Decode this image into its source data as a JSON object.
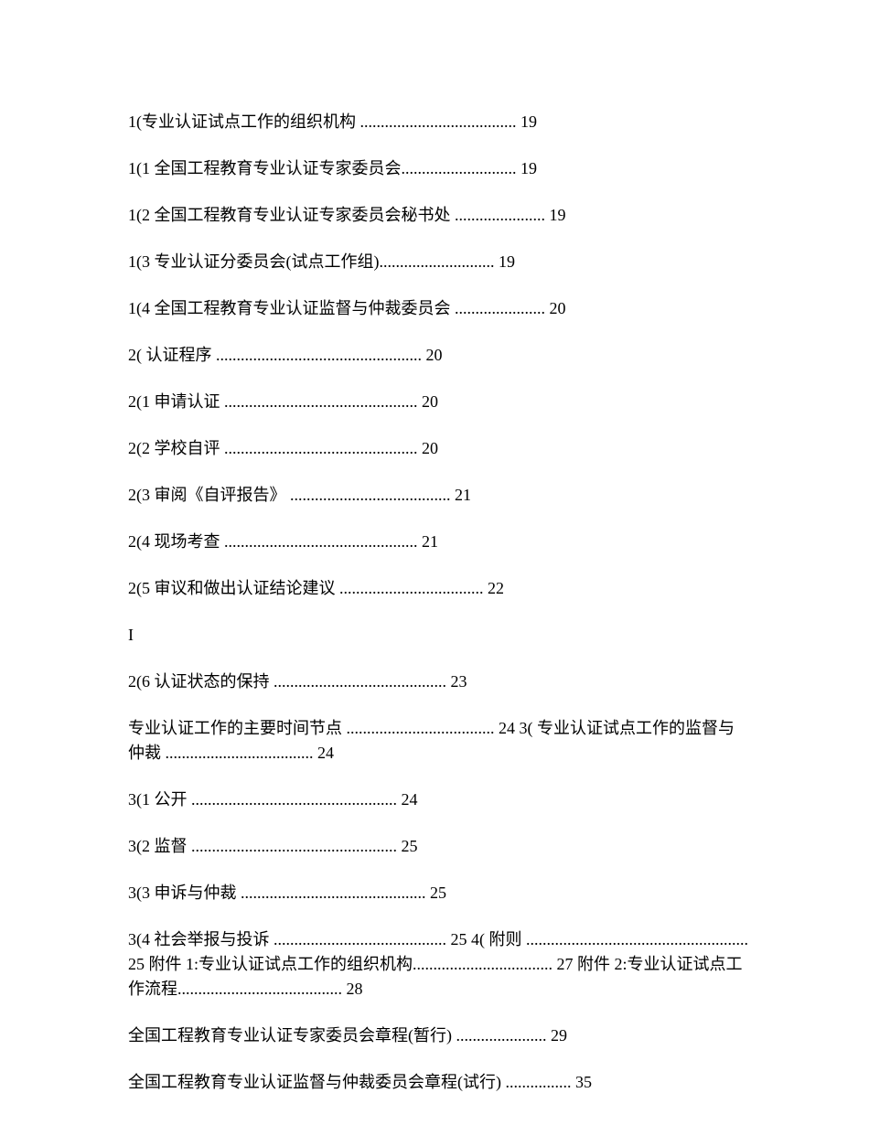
{
  "entries": [
    {
      "text": "1(专业认证试点工作的组织机构 ...................................... 19"
    },
    {
      "text": "1(1 全国工程教育专业认证专家委员会............................ 19"
    },
    {
      "text": "1(2 全国工程教育专业认证专家委员会秘书处 ...................... 19"
    },
    {
      "text": "1(3 专业认证分委员会(试点工作组)............................ 19"
    },
    {
      "text": "1(4 全国工程教育专业认证监督与仲裁委员会 ...................... 20"
    },
    {
      "text": "2( 认证程序 .................................................. 20"
    },
    {
      "text": "2(1 申请认证 ............................................... 20"
    },
    {
      "text": "2(2 学校自评 ............................................... 20"
    },
    {
      "text": "2(3 审阅《自评报告》 ....................................... 21"
    },
    {
      "text": "2(4 现场考查 ............................................... 21"
    },
    {
      "text": "2(5 审议和做出认证结论建议 ................................... 22"
    },
    {
      "text": "I",
      "marker": true
    },
    {
      "text": "2(6 认证状态的保持 .......................................... 23"
    },
    {
      "text": "专业认证工作的主要时间节点 .................................... 24 3( 专业认证试点工作的监督与仲裁 .................................... 24"
    },
    {
      "text": "3(1 公开 .................................................. 24"
    },
    {
      "text": "3(2 监督 .................................................. 25"
    },
    {
      "text": "3(3 申诉与仲裁 ............................................. 25"
    },
    {
      "text": "3(4 社会举报与投诉 .......................................... 25 4( 附则 ...................................................... 25 附件 1:专业认证试点工作的组织机构.................................. 27 附件 2:专业认证试点工作流程........................................ 28"
    },
    {
      "text": "全国工程教育专业认证专家委员会章程(暂行) ...................... 29"
    },
    {
      "text": "全国工程教育专业认证监督与仲裁委员会章程(试行) ................ 35"
    }
  ]
}
